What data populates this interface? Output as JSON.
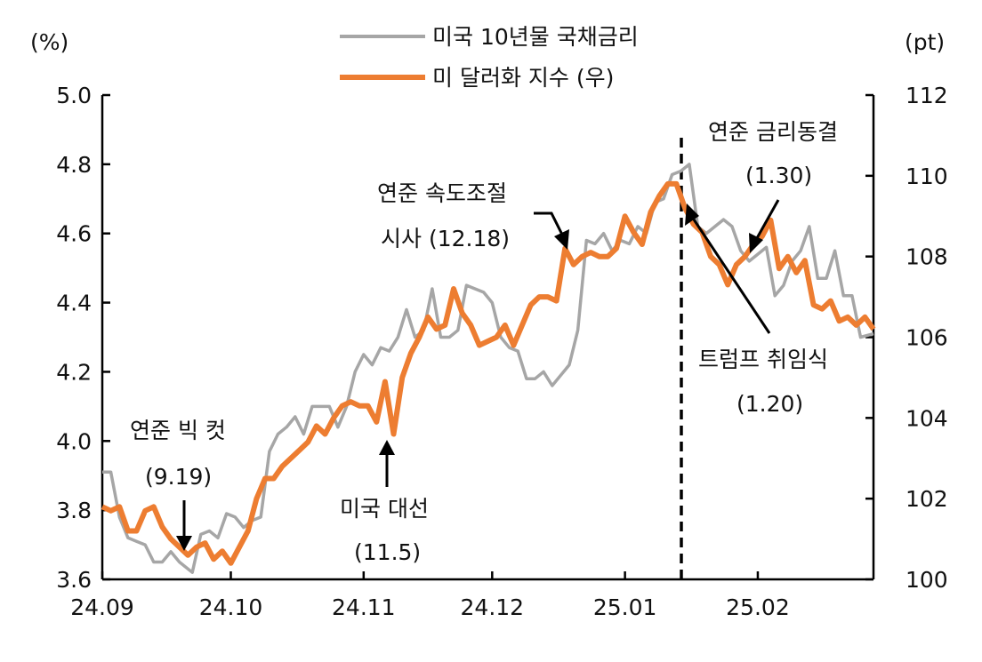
{
  "chart_data": {
    "type": "line",
    "x_range": [
      "2024-09-01",
      "2025-02-28"
    ],
    "x_ticks": [
      "24.09",
      "24.10",
      "24.11",
      "24.12",
      "25.01",
      "25.02"
    ],
    "y_left": {
      "unit": "(%)",
      "min": 3.6,
      "max": 5.0,
      "ticks": [
        "5.0",
        "4.8",
        "4.6",
        "4.4",
        "4.2",
        "4.0",
        "3.8",
        "3.6"
      ]
    },
    "y_right": {
      "unit": "(pt)",
      "min": 100,
      "max": 112,
      "ticks": [
        "112",
        "110",
        "108",
        "106",
        "104",
        "102",
        "100"
      ]
    },
    "grid": false,
    "legend_position": "top-center",
    "series": [
      {
        "name": "미국 10년물 국채금리",
        "axis": "left",
        "color": "#a6a6a6",
        "points": [
          [
            "2024-09-01",
            3.91
          ],
          [
            "2024-09-03",
            3.91
          ],
          [
            "2024-09-05",
            3.78
          ],
          [
            "2024-09-07",
            3.72
          ],
          [
            "2024-09-09",
            3.71
          ],
          [
            "2024-09-11",
            3.7
          ],
          [
            "2024-09-13",
            3.65
          ],
          [
            "2024-09-15",
            3.65
          ],
          [
            "2024-09-17",
            3.68
          ],
          [
            "2024-09-19",
            3.65
          ],
          [
            "2024-09-22",
            3.62
          ],
          [
            "2024-09-24",
            3.73
          ],
          [
            "2024-09-26",
            3.74
          ],
          [
            "2024-09-28",
            3.72
          ],
          [
            "2024-09-30",
            3.79
          ],
          [
            "2024-10-02",
            3.78
          ],
          [
            "2024-10-04",
            3.75
          ],
          [
            "2024-10-06",
            3.77
          ],
          [
            "2024-10-08",
            3.78
          ],
          [
            "2024-10-10",
            3.97
          ],
          [
            "2024-10-12",
            4.02
          ],
          [
            "2024-10-14",
            4.04
          ],
          [
            "2024-10-16",
            4.07
          ],
          [
            "2024-10-18",
            4.02
          ],
          [
            "2024-10-20",
            4.1
          ],
          [
            "2024-10-22",
            4.1
          ],
          [
            "2024-10-24",
            4.1
          ],
          [
            "2024-10-26",
            4.04
          ],
          [
            "2024-10-28",
            4.1
          ],
          [
            "2024-10-30",
            4.2
          ],
          [
            "2024-11-01",
            4.25
          ],
          [
            "2024-11-03",
            4.22
          ],
          [
            "2024-11-05",
            4.27
          ],
          [
            "2024-11-07",
            4.26
          ],
          [
            "2024-11-09",
            4.3
          ],
          [
            "2024-11-11",
            4.38
          ],
          [
            "2024-11-13",
            4.3
          ],
          [
            "2024-11-15",
            4.32
          ],
          [
            "2024-11-17",
            4.44
          ],
          [
            "2024-11-19",
            4.3
          ],
          [
            "2024-11-21",
            4.3
          ],
          [
            "2024-11-23",
            4.32
          ],
          [
            "2024-11-25",
            4.45
          ],
          [
            "2024-11-27",
            4.44
          ],
          [
            "2024-11-29",
            4.43
          ],
          [
            "2024-12-01",
            4.4
          ],
          [
            "2024-12-03",
            4.3
          ],
          [
            "2024-12-05",
            4.27
          ],
          [
            "2024-12-07",
            4.26
          ],
          [
            "2024-12-09",
            4.18
          ],
          [
            "2024-12-11",
            4.18
          ],
          [
            "2024-12-13",
            4.2
          ],
          [
            "2024-12-15",
            4.16
          ],
          [
            "2024-12-17",
            4.19
          ],
          [
            "2024-12-19",
            4.22
          ],
          [
            "2024-12-21",
            4.32
          ],
          [
            "2024-12-23",
            4.58
          ],
          [
            "2024-12-25",
            4.57
          ],
          [
            "2024-12-27",
            4.6
          ],
          [
            "2024-12-29",
            4.55
          ],
          [
            "2024-12-31",
            4.58
          ],
          [
            "2025-01-02",
            4.57
          ],
          [
            "2025-01-04",
            4.62
          ],
          [
            "2025-01-06",
            4.6
          ],
          [
            "2025-01-08",
            4.69
          ],
          [
            "2025-01-10",
            4.7
          ],
          [
            "2025-01-12",
            4.77
          ],
          [
            "2025-01-14",
            4.78
          ],
          [
            "2025-01-16",
            4.8
          ],
          [
            "2025-01-18",
            4.62
          ],
          [
            "2025-01-20",
            4.6
          ],
          [
            "2025-01-22",
            4.62
          ],
          [
            "2025-01-24",
            4.64
          ],
          [
            "2025-01-26",
            4.62
          ],
          [
            "2025-01-28",
            4.55
          ],
          [
            "2025-01-30",
            4.52
          ],
          [
            "2025-02-01",
            4.54
          ],
          [
            "2025-02-03",
            4.56
          ],
          [
            "2025-02-05",
            4.42
          ],
          [
            "2025-02-07",
            4.45
          ],
          [
            "2025-02-09",
            4.52
          ],
          [
            "2025-02-11",
            4.55
          ],
          [
            "2025-02-13",
            4.62
          ],
          [
            "2025-02-15",
            4.47
          ],
          [
            "2025-02-17",
            4.47
          ],
          [
            "2025-02-19",
            4.55
          ],
          [
            "2025-02-21",
            4.42
          ],
          [
            "2025-02-23",
            4.42
          ],
          [
            "2025-02-25",
            4.3
          ],
          [
            "2025-02-28",
            4.31
          ]
        ]
      },
      {
        "name": "미 달러화 지수 (우)",
        "axis": "right",
        "color": "#ed7d31",
        "points": [
          [
            "2024-09-01",
            101.8
          ],
          [
            "2024-09-03",
            101.7
          ],
          [
            "2024-09-05",
            101.8
          ],
          [
            "2024-09-07",
            101.2
          ],
          [
            "2024-09-09",
            101.2
          ],
          [
            "2024-09-11",
            101.7
          ],
          [
            "2024-09-13",
            101.8
          ],
          [
            "2024-09-15",
            101.3
          ],
          [
            "2024-09-17",
            101.0
          ],
          [
            "2024-09-19",
            100.8
          ],
          [
            "2024-09-21",
            100.6
          ],
          [
            "2024-09-23",
            100.8
          ],
          [
            "2024-09-25",
            100.9
          ],
          [
            "2024-09-27",
            100.5
          ],
          [
            "2024-09-29",
            100.7
          ],
          [
            "2024-10-01",
            100.4
          ],
          [
            "2024-10-03",
            100.8
          ],
          [
            "2024-10-05",
            101.2
          ],
          [
            "2024-10-07",
            102.0
          ],
          [
            "2024-10-09",
            102.5
          ],
          [
            "2024-10-11",
            102.5
          ],
          [
            "2024-10-13",
            102.8
          ],
          [
            "2024-10-15",
            103.0
          ],
          [
            "2024-10-17",
            103.2
          ],
          [
            "2024-10-19",
            103.4
          ],
          [
            "2024-10-21",
            103.8
          ],
          [
            "2024-10-23",
            103.6
          ],
          [
            "2024-10-25",
            104.0
          ],
          [
            "2024-10-27",
            104.3
          ],
          [
            "2024-10-29",
            104.4
          ],
          [
            "2024-10-31",
            104.3
          ],
          [
            "2024-11-02",
            104.3
          ],
          [
            "2024-11-04",
            103.9
          ],
          [
            "2024-11-06",
            104.9
          ],
          [
            "2024-11-08",
            103.6
          ],
          [
            "2024-11-10",
            105.0
          ],
          [
            "2024-11-12",
            105.6
          ],
          [
            "2024-11-14",
            106.0
          ],
          [
            "2024-11-16",
            106.5
          ],
          [
            "2024-11-18",
            106.2
          ],
          [
            "2024-11-20",
            106.3
          ],
          [
            "2024-11-22",
            107.2
          ],
          [
            "2024-11-24",
            106.6
          ],
          [
            "2024-11-26",
            106.3
          ],
          [
            "2024-11-28",
            105.8
          ],
          [
            "2024-11-30",
            105.9
          ],
          [
            "2024-12-02",
            106.0
          ],
          [
            "2024-12-04",
            106.3
          ],
          [
            "2024-12-06",
            105.8
          ],
          [
            "2024-12-08",
            106.3
          ],
          [
            "2024-12-10",
            106.8
          ],
          [
            "2024-12-12",
            107.0
          ],
          [
            "2024-12-14",
            107.0
          ],
          [
            "2024-12-16",
            106.9
          ],
          [
            "2024-12-18",
            108.2
          ],
          [
            "2024-12-20",
            107.8
          ],
          [
            "2024-12-22",
            108.0
          ],
          [
            "2024-12-24",
            108.1
          ],
          [
            "2024-12-26",
            108.0
          ],
          [
            "2024-12-28",
            108.0
          ],
          [
            "2024-12-30",
            108.2
          ],
          [
            "2025-01-01",
            109.0
          ],
          [
            "2025-01-03",
            108.6
          ],
          [
            "2025-01-05",
            108.3
          ],
          [
            "2025-01-07",
            109.1
          ],
          [
            "2025-01-09",
            109.5
          ],
          [
            "2025-01-11",
            109.8
          ],
          [
            "2025-01-13",
            109.8
          ],
          [
            "2025-01-15",
            109.2
          ],
          [
            "2025-01-17",
            108.8
          ],
          [
            "2025-01-19",
            108.6
          ],
          [
            "2025-01-21",
            108.0
          ],
          [
            "2025-01-23",
            107.8
          ],
          [
            "2025-01-25",
            107.3
          ],
          [
            "2025-01-27",
            107.8
          ],
          [
            "2025-01-29",
            108.0
          ],
          [
            "2025-01-31",
            108.3
          ],
          [
            "2025-02-02",
            108.5
          ],
          [
            "2025-02-04",
            108.9
          ],
          [
            "2025-02-06",
            107.7
          ],
          [
            "2025-02-08",
            108.0
          ],
          [
            "2025-02-10",
            107.6
          ],
          [
            "2025-02-12",
            107.9
          ],
          [
            "2025-02-14",
            106.8
          ],
          [
            "2025-02-16",
            106.7
          ],
          [
            "2025-02-18",
            106.9
          ],
          [
            "2025-02-20",
            106.4
          ],
          [
            "2025-02-22",
            106.5
          ],
          [
            "2025-02-24",
            106.3
          ],
          [
            "2025-02-26",
            106.5
          ],
          [
            "2025-02-28",
            106.2
          ]
        ]
      }
    ],
    "annotations": [
      {
        "lines": [
          "연준 빅 컷",
          "(9.19)"
        ],
        "date": "2024-09-19"
      },
      {
        "lines": [
          "미국 대선",
          "(11.5)"
        ],
        "date": "2024-11-05"
      },
      {
        "lines": [
          "연준 속도조절",
          "시사 (12.18)"
        ],
        "date": "2024-12-18"
      },
      {
        "lines": [
          "연준 금리동결",
          "(1.30)"
        ],
        "date": "2025-01-30"
      },
      {
        "lines": [
          "트럼프 취임식",
          "(1.20)"
        ],
        "date": "2025-01-20"
      }
    ]
  }
}
